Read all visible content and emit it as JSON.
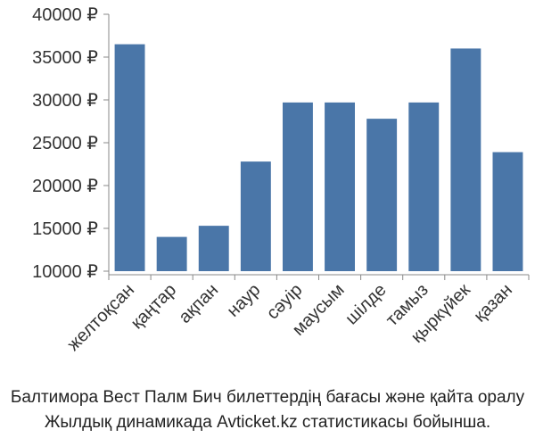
{
  "caption": {
    "line1": "Балтимора Вест Палм Бич билеттердің бағасы және қайта оралу",
    "line2": "Жылдық динамикада Avticket.kz статистикасы бойынша."
  },
  "chart_data": {
    "type": "bar",
    "categories": [
      "желтоқсан",
      "қаңтар",
      "ақпан",
      "наур",
      "сәуір",
      "маусым",
      "шілде",
      "тамыз",
      "қыркүйек",
      "қазан"
    ],
    "values": [
      36500,
      14000,
      15300,
      22800,
      29700,
      29700,
      27800,
      29700,
      36000,
      23900
    ],
    "yticks": [
      "10000 ₽",
      "15000 ₽",
      "20000 ₽",
      "25000 ₽",
      "30000 ₽",
      "35000 ₽",
      "40000 ₽"
    ],
    "ylim": [
      10000,
      40000
    ],
    "colors": {
      "bar": "#4a76a8",
      "axis": "#888888",
      "text": "#333333"
    }
  }
}
